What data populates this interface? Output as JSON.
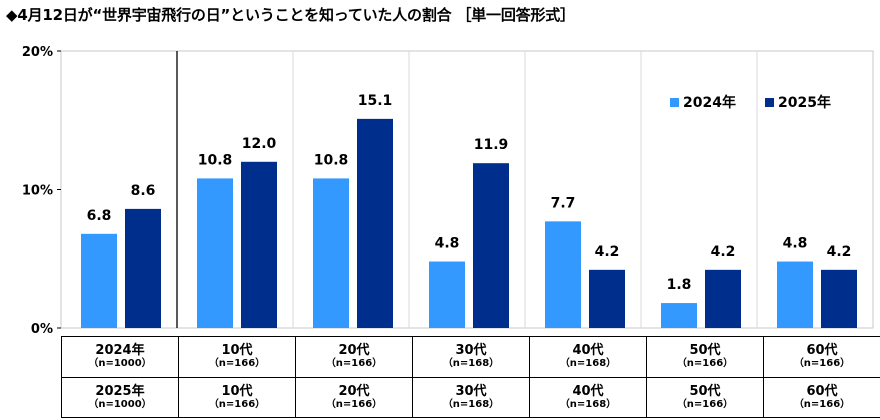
{
  "title": "◆4月12日が“世界宇宙飛行の日”ということを知っていた人の割合 ［単一回答形式］",
  "chart_data": {
    "type": "bar",
    "categories": [
      "2024年/2025年",
      "10代",
      "20代",
      "30代",
      "40代",
      "50代",
      "60代"
    ],
    "series": [
      {
        "name": "2024年",
        "values": [
          6.8,
          10.8,
          10.8,
          4.8,
          7.7,
          1.8,
          4.8
        ],
        "color": "#3399FF"
      },
      {
        "name": "2025年",
        "values": [
          8.6,
          12.0,
          15.1,
          11.9,
          4.2,
          4.2,
          4.2
        ],
        "color": "#002E8C"
      }
    ],
    "value_labels": [
      [
        "6.8",
        "10.8",
        "10.8",
        "4.8",
        "7.7",
        "1.8",
        "4.8"
      ],
      [
        "8.6",
        "12.0",
        "15.1",
        "11.9",
        "4.2",
        "4.2",
        "4.2"
      ]
    ],
    "ylim": [
      0,
      20
    ],
    "yticks": [
      0,
      10,
      20
    ],
    "ytick_labels": [
      "0%",
      "10%",
      "20%"
    ],
    "grid": "vertical",
    "legend": "top-right"
  },
  "table": {
    "row1": [
      {
        "label": "2024年",
        "n": "（n=1000）"
      },
      {
        "label": "10代",
        "n": "（n=166）"
      },
      {
        "label": "20代",
        "n": "（n=166）"
      },
      {
        "label": "30代",
        "n": "（n=168）"
      },
      {
        "label": "40代",
        "n": "（n=168）"
      },
      {
        "label": "50代",
        "n": "（n=166）"
      },
      {
        "label": "60代",
        "n": "（n=166）"
      }
    ],
    "row2": [
      {
        "label": "2025年",
        "n": "（n=1000）"
      },
      {
        "label": "10代",
        "n": "（n=166）"
      },
      {
        "label": "20代",
        "n": "（n=166）"
      },
      {
        "label": "30代",
        "n": "（n=168）"
      },
      {
        "label": "40代",
        "n": "（n=168）"
      },
      {
        "label": "50代",
        "n": "（n=166）"
      },
      {
        "label": "60代",
        "n": "（n=166）"
      }
    ]
  }
}
